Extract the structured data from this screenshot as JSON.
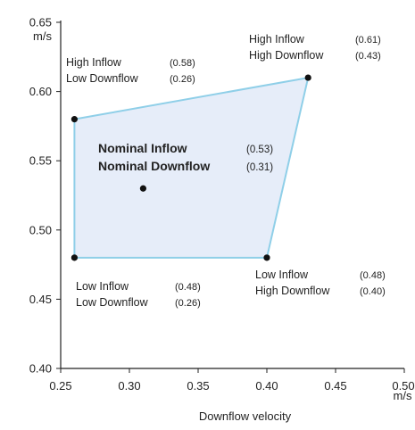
{
  "chart_data": {
    "type": "scatter",
    "xlabel": "Downflow velocity",
    "x_unit": "m/s",
    "y_unit": "m/s",
    "xlim": [
      0.25,
      0.5
    ],
    "ylim": [
      0.4,
      0.65
    ],
    "x_ticks": [
      "0.25",
      "0.30",
      "0.35",
      "0.40",
      "0.45",
      "0.50"
    ],
    "y_ticks": [
      "0.40",
      "0.45",
      "0.50",
      "0.55",
      "0.60",
      "0.65"
    ],
    "grid": false,
    "colors": {
      "fill": "#e6edf9",
      "outline": "#8fcfe8",
      "point": "#111111"
    },
    "points": [
      {
        "x": 0.26,
        "y": 0.58,
        "line1": "High Inflow",
        "line2": "Low Downflow",
        "val1": "(0.58)",
        "val2": "(0.26)"
      },
      {
        "x": 0.43,
        "y": 0.61,
        "line1": "High Inflow",
        "line2": "High Downflow",
        "val1": "(0.61)",
        "val2": "(0.43)"
      },
      {
        "x": 0.4,
        "y": 0.48,
        "line1": "Low Inflow",
        "line2": "High Downflow",
        "val1": "(0.48)",
        "val2": "(0.40)"
      },
      {
        "x": 0.26,
        "y": 0.48,
        "line1": "Low Inflow",
        "line2": "Low Downflow",
        "val1": "(0.48)",
        "val2": "(0.26)"
      }
    ],
    "nominal": {
      "x": 0.31,
      "y": 0.53,
      "line1": "Nominal Inflow",
      "line2": "Nominal Downflow",
      "val1": "(0.53)",
      "val2": "(0.31)"
    }
  }
}
